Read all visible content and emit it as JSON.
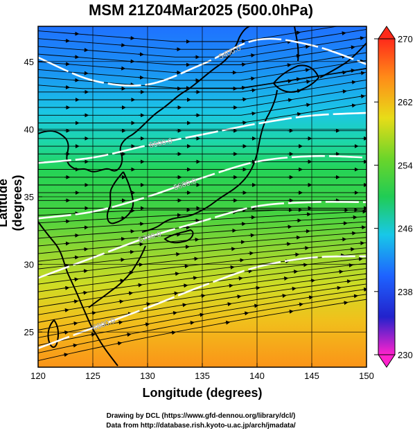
{
  "title": "MSM 21Z04Mar2025 (500.0hPa)",
  "x_axis": {
    "label": "Longitude (degrees)",
    "ticks": [
      "120",
      "125",
      "130",
      "135",
      "140",
      "145",
      "150"
    ]
  },
  "y_axis": {
    "label": "Latitude  (degrees)",
    "ticks": [
      "25",
      "30",
      "35",
      "40",
      "45"
    ]
  },
  "colorbar": {
    "ticks": [
      "270",
      "262",
      "254",
      "246",
      "238",
      "230"
    ]
  },
  "contours": [
    {
      "label": "5400.0"
    },
    {
      "label": "5500.0"
    },
    {
      "label": "5600.0"
    },
    {
      "label": "5700.0"
    },
    {
      "label": "5800.0"
    }
  ],
  "footer": {
    "line1": "Drawing by DCL (https://www.gfd-dennou.org/library/dcl/)",
    "line2": "Data from http://database.rish.kyoto-u.ac.jp/arch/jmadata/"
  },
  "chart_data": {
    "type": "heatmap",
    "title": "MSM 21Z04Mar2025 (500.0hPa)",
    "xlabel": "Longitude (degrees)",
    "ylabel": "Latitude  (degrees)",
    "xlim": [
      120,
      150
    ],
    "ylim": [
      22.4,
      47.6
    ],
    "colorbar_range": [
      230,
      270
    ],
    "colorscale": [
      "#ff22cc",
      "#2222cc",
      "#1e63ff",
      "#18c8e8",
      "#20cc55",
      "#6bd52a",
      "#e8dc18",
      "#ff8a18",
      "#ff2a1a"
    ],
    "temperature_by_latitude": [
      {
        "lat": 22.4,
        "value": 264
      },
      {
        "lat": 25,
        "value": 262
      },
      {
        "lat": 28,
        "value": 259
      },
      {
        "lat": 31,
        "value": 257
      },
      {
        "lat": 34,
        "value": 254
      },
      {
        "lat": 37,
        "value": 251
      },
      {
        "lat": 40,
        "value": 248
      },
      {
        "lat": 43,
        "value": 246
      },
      {
        "lat": 47.6,
        "value": 244
      }
    ],
    "height_contours_lat": [
      {
        "value": 5400,
        "points": [
          [
            120,
            45.3
          ],
          [
            125,
            43.6
          ],
          [
            130,
            43.3
          ],
          [
            135,
            44.8
          ],
          [
            140,
            46.6
          ],
          [
            145,
            46.2
          ],
          [
            150,
            44.8
          ]
        ]
      },
      {
        "value": 5500,
        "points": [
          [
            120,
            37.5
          ],
          [
            125,
            37.9
          ],
          [
            130,
            38.8
          ],
          [
            135,
            39.6
          ],
          [
            140,
            40.4
          ],
          [
            145,
            41.0
          ],
          [
            150,
            41.2
          ]
        ]
      },
      {
        "value": 5600,
        "points": [
          [
            120,
            33.4
          ],
          [
            125,
            33.9
          ],
          [
            130,
            35.0
          ],
          [
            135,
            36.4
          ],
          [
            140,
            37.6
          ],
          [
            145,
            38.0
          ],
          [
            150,
            37.9
          ]
        ]
      },
      {
        "value": 5700,
        "points": [
          [
            120,
            29.0
          ],
          [
            125,
            30.5
          ],
          [
            130,
            32.0
          ],
          [
            135,
            33.2
          ],
          [
            140,
            34.3
          ],
          [
            145,
            34.6
          ],
          [
            150,
            34.6
          ]
        ]
      },
      {
        "value": 5800,
        "points": [
          [
            120,
            23.8
          ],
          [
            125,
            25.3
          ],
          [
            130,
            26.8
          ],
          [
            135,
            28.4
          ],
          [
            140,
            29.8
          ],
          [
            145,
            30.5
          ],
          [
            150,
            30.6
          ]
        ]
      }
    ]
  }
}
